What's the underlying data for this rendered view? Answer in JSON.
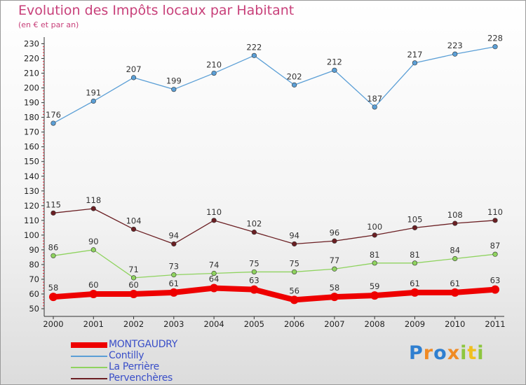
{
  "header": {
    "title": "Evolution des Impôts locaux par Habitant",
    "subtitle": "(en € et par an)"
  },
  "brand": {
    "text": "Proxiti",
    "letters": [
      "P",
      "r",
      "o",
      "x",
      "i",
      "t",
      "i"
    ]
  },
  "colors": {
    "title": "#c8407a",
    "legend_text": "#3a4fc8",
    "montgaudry": "#ee0000",
    "contilly": "#5b9fd6",
    "la_perriere": "#8fd35f",
    "pervencheres": "#6b1f23"
  },
  "chart_data": {
    "type": "line",
    "title": "Evolution des Impôts locaux par Habitant",
    "subtitle": "(en € et par an)",
    "categories": [
      "2000",
      "2001",
      "2002",
      "2003",
      "2004",
      "2005",
      "2006",
      "2007",
      "2008",
      "2009",
      "2010",
      "2011"
    ],
    "ylim": [
      50,
      230
    ],
    "yticks": [
      50,
      60,
      70,
      80,
      90,
      100,
      110,
      120,
      130,
      140,
      150,
      160,
      170,
      180,
      190,
      200,
      210,
      220,
      230
    ],
    "grid": false,
    "legend_position": "bottom-left",
    "series": [
      {
        "name": "MONTGAUDRY",
        "key": "montgaudry",
        "color": "#ee0000",
        "emphasis": true,
        "values": [
          58,
          60,
          60,
          61,
          64,
          63,
          56,
          58,
          59,
          61,
          61,
          63
        ]
      },
      {
        "name": "Contilly",
        "key": "contilly",
        "color": "#5b9fd6",
        "emphasis": false,
        "values": [
          176,
          191,
          207,
          199,
          210,
          222,
          202,
          212,
          187,
          217,
          223,
          228
        ]
      },
      {
        "name": "La Perrière",
        "key": "la_perriere",
        "color": "#8fd35f",
        "emphasis": false,
        "values": [
          86,
          90,
          71,
          73,
          74,
          75,
          75,
          77,
          81,
          81,
          84,
          87
        ]
      },
      {
        "name": "Pervenchères",
        "key": "pervencheres",
        "color": "#6b1f23",
        "emphasis": false,
        "values": [
          115,
          118,
          104,
          94,
          110,
          102,
          94,
          96,
          100,
          105,
          108,
          110
        ]
      }
    ]
  }
}
